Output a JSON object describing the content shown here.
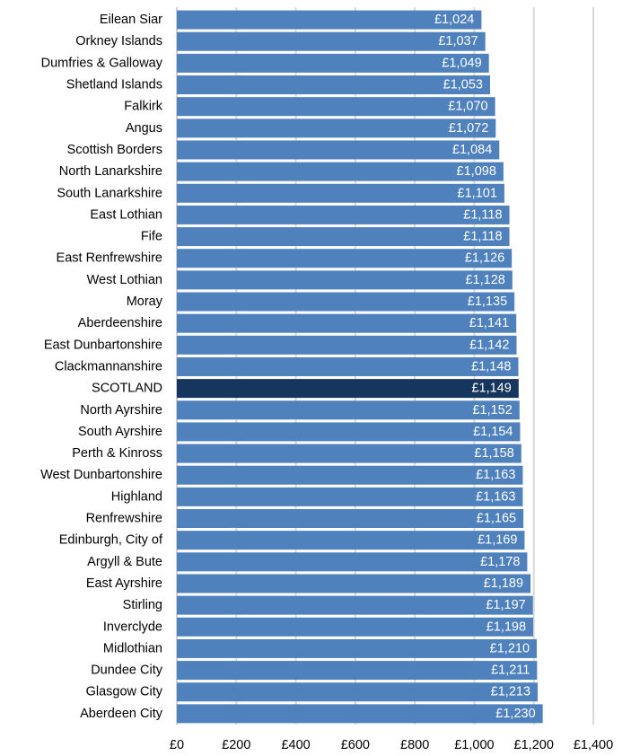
{
  "chart_data": {
    "type": "bar",
    "orientation": "horizontal",
    "title": "",
    "xlabel": "",
    "ylabel": "",
    "xlim": [
      0,
      1400
    ],
    "grid": "vertical",
    "categories": [
      "Eilean Siar",
      "Orkney Islands",
      "Dumfries & Galloway",
      "Shetland  Islands",
      "Falkirk",
      "Angus",
      "Scottish Borders",
      "North Lanarkshire",
      "South Lanarkshire",
      "East Lothian",
      "Fife",
      "East Renfrewshire",
      "West Lothian",
      "Moray",
      "Aberdeenshire",
      "East Dunbartonshire",
      "Clackmannanshire",
      "SCOTLAND",
      "North Ayrshire",
      "South Ayrshire",
      "Perth & Kinross",
      "West Dunbartonshire",
      "Highland",
      "Renfrewshire",
      "Edinburgh, City of",
      "Argyll & Bute",
      "East Ayrshire",
      "Stirling",
      "Inverclyde",
      "Midlothian",
      "Dundee City",
      "Glasgow City",
      "Aberdeen City"
    ],
    "values": [
      1024,
      1037,
      1049,
      1053,
      1070,
      1072,
      1084,
      1098,
      1101,
      1118,
      1118,
      1126,
      1128,
      1135,
      1141,
      1142,
      1148,
      1149,
      1152,
      1154,
      1158,
      1163,
      1163,
      1165,
      1169,
      1178,
      1189,
      1197,
      1198,
      1210,
      1211,
      1213,
      1230
    ],
    "value_labels": [
      "£1,024",
      "£1,037",
      "£1,049",
      "£1,053",
      "£1,070",
      "£1,072",
      "£1,084",
      "£1,098",
      "£1,101",
      "£1,118",
      "£1,118",
      "£1,126",
      "£1,128",
      "£1,135",
      "£1,141",
      "£1,142",
      "£1,148",
      "£1,149",
      "£1,152",
      "£1,154",
      "£1,158",
      "£1,163",
      "£1,163",
      "£1,165",
      "£1,169",
      "£1,178",
      "£1,189",
      "£1,197",
      "£1,198",
      "£1,210",
      "£1,211",
      "£1,213",
      "£1,230"
    ],
    "highlight_category": "SCOTLAND",
    "x_ticks": [
      0,
      200,
      400,
      600,
      800,
      1000,
      1200,
      1400
    ],
    "x_tick_labels": [
      "£0",
      "£200",
      "£400",
      "£600",
      "£800",
      "£1,000",
      "£1,200",
      "£1,400"
    ],
    "colors": {
      "bar": "#4f81bd",
      "highlight": "#17365d",
      "grid": "#d9d9d9"
    }
  }
}
